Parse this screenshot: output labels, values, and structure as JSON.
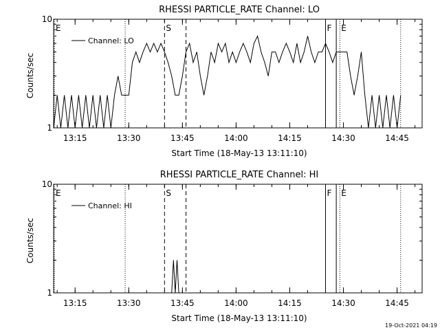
{
  "chart_data": [
    {
      "type": "line",
      "title": "RHESSI PARTICLE_RATE Channel: LO",
      "xlabel": "Start Time (18-May-13 13:11:10)",
      "ylabel": "Counts/sec",
      "y_scale": "log",
      "ylim": [
        1,
        10
      ],
      "y_ticks": [
        "1",
        "10"
      ],
      "xlim": [
        "13:09",
        "14:52"
      ],
      "x_ticks": [
        "13:15",
        "13:30",
        "13:45",
        "14:00",
        "14:15",
        "14:30",
        "14:45"
      ],
      "legend": {
        "label": "Channel: LO",
        "placement": "top-left"
      },
      "series": [
        {
          "name": "Channel: LO",
          "x": [
            "13:09",
            "13:10",
            "13:11",
            "13:12",
            "13:13",
            "13:14",
            "13:15",
            "13:16",
            "13:17",
            "13:18",
            "13:19",
            "13:20",
            "13:21",
            "13:22",
            "13:23",
            "13:24",
            "13:25",
            "13:26",
            "13:27",
            "13:28",
            "13:29",
            "13:30",
            "13:31",
            "13:32",
            "13:33",
            "13:34",
            "13:35",
            "13:36",
            "13:37",
            "13:38",
            "13:39",
            "13:40",
            "13:41",
            "13:42",
            "13:43",
            "13:44",
            "13:45",
            "13:46",
            "13:47",
            "13:48",
            "13:49",
            "13:50",
            "13:51",
            "13:52",
            "13:53",
            "13:54",
            "13:55",
            "13:56",
            "13:57",
            "13:58",
            "13:59",
            "14:00",
            "14:01",
            "14:02",
            "14:03",
            "14:04",
            "14:05",
            "14:06",
            "14:07",
            "14:08",
            "14:09",
            "14:10",
            "14:11",
            "14:12",
            "14:13",
            "14:14",
            "14:15",
            "14:16",
            "14:17",
            "14:18",
            "14:19",
            "14:20",
            "14:21",
            "14:22",
            "14:23",
            "14:24",
            "14:25",
            "14:26",
            "14:27",
            "14:28",
            "14:29",
            "14:30",
            "14:31",
            "14:32",
            "14:33",
            "14:34",
            "14:35",
            "14:36",
            "14:37",
            "14:38",
            "14:39",
            "14:40",
            "14:41",
            "14:42",
            "14:43",
            "14:44",
            "14:45",
            "14:46"
          ],
          "values": [
            1,
            2,
            1,
            2,
            1,
            2,
            1,
            2,
            1,
            2,
            1,
            2,
            1,
            2,
            1,
            2,
            1,
            2,
            3,
            2,
            2,
            2,
            4,
            5,
            4,
            5,
            6,
            5,
            6,
            5,
            6,
            5,
            4,
            3,
            2,
            2,
            3,
            5,
            6,
            4,
            5,
            3,
            2,
            3,
            5,
            4,
            6,
            5,
            6,
            4,
            5,
            4,
            5,
            6,
            5,
            4,
            6,
            7,
            5,
            4,
            3,
            5,
            5,
            4,
            5,
            6,
            5,
            4,
            6,
            4,
            5,
            7,
            5,
            4,
            5,
            5,
            6,
            5,
            4,
            5,
            5,
            5,
            5,
            3,
            2,
            3,
            5,
            2,
            1,
            2,
            1,
            2,
            1,
            2,
            1,
            2,
            1,
            2
          ],
          "color": "#000000"
        }
      ],
      "markers": [
        {
          "time": "13:09",
          "label": "E",
          "style": "dotted"
        },
        {
          "time": "13:29",
          "label": "",
          "style": "dotted"
        },
        {
          "time": "13:40",
          "label": "S",
          "style": "dashed"
        },
        {
          "time": "13:46",
          "label": "",
          "style": "dashed"
        },
        {
          "time": "14:25",
          "label": "F",
          "style": "solid"
        },
        {
          "time": "14:28",
          "label": "",
          "style": "solid"
        },
        {
          "time": "14:29",
          "label": "E",
          "style": "dotted"
        },
        {
          "time": "14:46",
          "label": "",
          "style": "dotted"
        }
      ]
    },
    {
      "type": "line",
      "title": "RHESSI PARTICLE_RATE Channel: HI",
      "xlabel": "Start Time (18-May-13 13:11:10)",
      "ylabel": "Counts/sec",
      "y_scale": "log",
      "ylim": [
        1,
        10
      ],
      "y_ticks": [
        "1",
        "10"
      ],
      "xlim": [
        "13:09",
        "14:52"
      ],
      "x_ticks": [
        "13:15",
        "13:30",
        "13:45",
        "14:00",
        "14:15",
        "14:30",
        "14:45"
      ],
      "legend": {
        "label": "Channel: HI",
        "placement": "top-left"
      },
      "series": [
        {
          "name": "Channel: HI",
          "x": [
            "13:42.0",
            "13:42.5",
            "13:43.0",
            "13:43.5",
            "13:44.0"
          ],
          "values": [
            1,
            2,
            1,
            2,
            1
          ],
          "color": "#000000"
        }
      ],
      "markers": [
        {
          "time": "13:09",
          "label": "E",
          "style": "dotted"
        },
        {
          "time": "13:29",
          "label": "",
          "style": "dotted"
        },
        {
          "time": "13:40",
          "label": "S",
          "style": "dashed"
        },
        {
          "time": "13:46",
          "label": "",
          "style": "dashed"
        },
        {
          "time": "14:25",
          "label": "F",
          "style": "solid"
        },
        {
          "time": "14:28",
          "label": "",
          "style": "solid"
        },
        {
          "time": "14:29",
          "label": "E",
          "style": "dotted"
        },
        {
          "time": "14:46",
          "label": "",
          "style": "dotted"
        }
      ]
    }
  ],
  "footer": {
    "timestamp": "19-Oct-2021 04:19"
  }
}
